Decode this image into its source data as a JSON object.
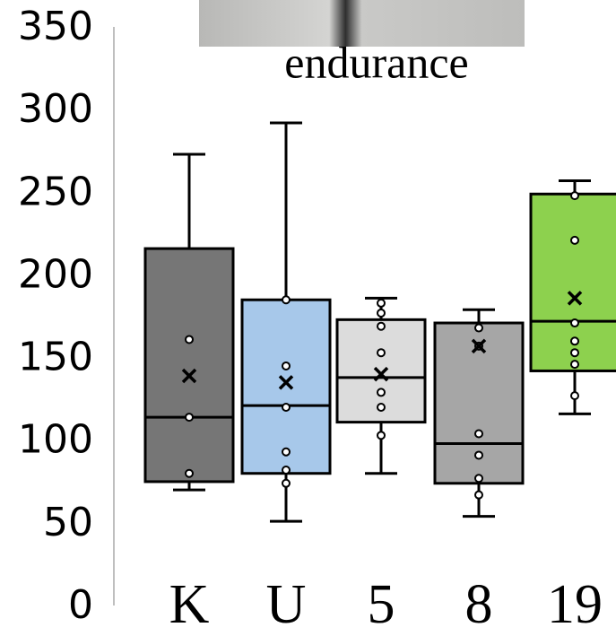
{
  "chart_data": {
    "type": "box",
    "title": "endurance",
    "categories": [
      "K",
      "U",
      "5",
      "8",
      "19"
    ],
    "ylim": [
      0,
      350
    ],
    "yticks": [
      0,
      50,
      100,
      150,
      200,
      250,
      300,
      350
    ],
    "grid": false,
    "boxes": [
      {
        "color": "#767676",
        "whisker_low": 71,
        "q1": 76,
        "median": 115,
        "q3": 217,
        "whisker_high": 274,
        "mean": 140,
        "points": [
          162,
          115,
          81
        ]
      },
      {
        "color": "#a7c8ea",
        "whisker_low": 52,
        "q1": 81,
        "median": 122,
        "q3": 186,
        "whisker_high": 293,
        "mean": 136,
        "points": [
          186,
          146,
          121,
          94,
          83,
          75
        ]
      },
      {
        "color": "#dcdcdc",
        "whisker_low": 81,
        "q1": 112,
        "median": 139,
        "q3": 174,
        "whisker_high": 187,
        "mean": 141,
        "points": [
          184,
          178,
          170,
          154,
          130,
          121,
          104
        ]
      },
      {
        "color": "#a6a6a6",
        "whisker_low": 55,
        "q1": 75,
        "median": 99,
        "q3": 172,
        "whisker_high": 180,
        "mean": 158,
        "points": [
          169,
          158,
          105,
          92,
          78,
          68
        ]
      },
      {
        "color": "#8dd14e",
        "whisker_low": 117,
        "q1": 143,
        "median": 173,
        "q3": 250,
        "whisker_high": 258,
        "mean": 187,
        "points": [
          249,
          222,
          172,
          161,
          154,
          147,
          128
        ]
      }
    ]
  }
}
